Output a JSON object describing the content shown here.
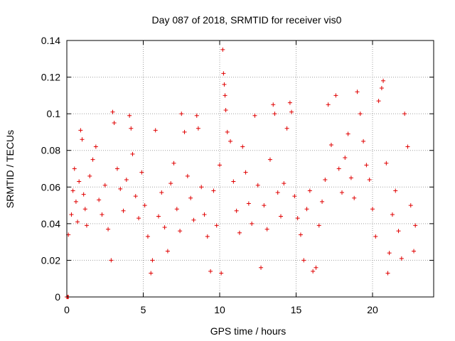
{
  "chart_data": {
    "type": "scatter",
    "title": "Day 087 of 2018, SRMTID for receiver vis0",
    "xlabel": "GPS time / hours",
    "ylabel": "SRMTID / TECUs",
    "xlim": [
      0,
      24
    ],
    "ylim": [
      0,
      0.14
    ],
    "xticks": [
      0,
      5,
      10,
      15,
      20
    ],
    "yticks": [
      0,
      0.02,
      0.04,
      0.06,
      0.08,
      0.1,
      0.12,
      0.14
    ],
    "xtick_labels": [
      "0",
      "5",
      "10",
      "15",
      "20"
    ],
    "ytick_labels": [
      "0",
      "0.02",
      "0.04",
      "0.06",
      "0.08",
      "0.1",
      "0.12",
      "0.14"
    ],
    "grid": true,
    "marker": "+",
    "series_color": "#e00000",
    "series": [
      {
        "name": "vis0",
        "note": "dense noisy cloud, approx 0.013-0.135 TECU over 0-22.8 h",
        "points": [
          [
            0.0,
            0.0
          ],
          [
            0.05,
            0.0
          ],
          [
            0.1,
            0.0
          ],
          [
            0.1,
            0.034
          ],
          [
            0.3,
            0.045
          ],
          [
            0.4,
            0.058
          ],
          [
            0.5,
            0.07
          ],
          [
            0.6,
            0.052
          ],
          [
            0.7,
            0.041
          ],
          [
            0.8,
            0.063
          ],
          [
            0.9,
            0.091
          ],
          [
            1.0,
            0.086
          ],
          [
            1.1,
            0.056
          ],
          [
            1.2,
            0.048
          ],
          [
            1.3,
            0.039
          ],
          [
            1.5,
            0.066
          ],
          [
            1.7,
            0.075
          ],
          [
            1.9,
            0.082
          ],
          [
            2.1,
            0.053
          ],
          [
            2.3,
            0.045
          ],
          [
            2.5,
            0.061
          ],
          [
            2.7,
            0.037
          ],
          [
            2.9,
            0.02
          ],
          [
            3.0,
            0.101
          ],
          [
            3.1,
            0.095
          ],
          [
            3.3,
            0.07
          ],
          [
            3.5,
            0.059
          ],
          [
            3.7,
            0.047
          ],
          [
            3.9,
            0.064
          ],
          [
            4.1,
            0.099
          ],
          [
            4.2,
            0.092
          ],
          [
            4.3,
            0.078
          ],
          [
            4.5,
            0.055
          ],
          [
            4.7,
            0.043
          ],
          [
            4.9,
            0.068
          ],
          [
            5.1,
            0.05
          ],
          [
            5.3,
            0.033
          ],
          [
            5.5,
            0.013
          ],
          [
            5.6,
            0.02
          ],
          [
            5.8,
            0.091
          ],
          [
            6.0,
            0.044
          ],
          [
            6.2,
            0.057
          ],
          [
            6.4,
            0.038
          ],
          [
            6.6,
            0.025
          ],
          [
            6.8,
            0.062
          ],
          [
            7.0,
            0.073
          ],
          [
            7.2,
            0.048
          ],
          [
            7.4,
            0.036
          ],
          [
            7.5,
            0.1
          ],
          [
            7.7,
            0.09
          ],
          [
            7.9,
            0.066
          ],
          [
            8.1,
            0.054
          ],
          [
            8.3,
            0.042
          ],
          [
            8.5,
            0.099
          ],
          [
            8.6,
            0.092
          ],
          [
            8.8,
            0.06
          ],
          [
            9.0,
            0.045
          ],
          [
            9.2,
            0.033
          ],
          [
            9.4,
            0.014
          ],
          [
            9.6,
            0.058
          ],
          [
            9.8,
            0.039
          ],
          [
            10.0,
            0.072
          ],
          [
            10.1,
            0.013
          ],
          [
            10.2,
            0.135
          ],
          [
            10.25,
            0.122
          ],
          [
            10.3,
            0.116
          ],
          [
            10.35,
            0.11
          ],
          [
            10.4,
            0.102
          ],
          [
            10.5,
            0.09
          ],
          [
            10.7,
            0.085
          ],
          [
            10.9,
            0.063
          ],
          [
            11.1,
            0.047
          ],
          [
            11.3,
            0.035
          ],
          [
            11.5,
            0.082
          ],
          [
            11.7,
            0.068
          ],
          [
            11.9,
            0.051
          ],
          [
            12.1,
            0.04
          ],
          [
            12.3,
            0.099
          ],
          [
            12.5,
            0.061
          ],
          [
            12.7,
            0.016
          ],
          [
            12.9,
            0.05
          ],
          [
            13.1,
            0.037
          ],
          [
            13.3,
            0.075
          ],
          [
            13.5,
            0.105
          ],
          [
            13.6,
            0.1
          ],
          [
            13.8,
            0.057
          ],
          [
            14.0,
            0.044
          ],
          [
            14.2,
            0.062
          ],
          [
            14.4,
            0.092
          ],
          [
            14.6,
            0.106
          ],
          [
            14.7,
            0.101
          ],
          [
            14.9,
            0.055
          ],
          [
            15.1,
            0.043
          ],
          [
            15.3,
            0.034
          ],
          [
            15.5,
            0.02
          ],
          [
            15.7,
            0.048
          ],
          [
            15.9,
            0.058
          ],
          [
            16.1,
            0.014
          ],
          [
            16.3,
            0.016
          ],
          [
            16.5,
            0.039
          ],
          [
            16.7,
            0.052
          ],
          [
            16.9,
            0.064
          ],
          [
            17.1,
            0.105
          ],
          [
            17.3,
            0.083
          ],
          [
            17.6,
            0.11
          ],
          [
            17.8,
            0.07
          ],
          [
            18.0,
            0.057
          ],
          [
            18.2,
            0.076
          ],
          [
            18.4,
            0.089
          ],
          [
            18.6,
            0.065
          ],
          [
            18.8,
            0.054
          ],
          [
            19.0,
            0.112
          ],
          [
            19.2,
            0.1
          ],
          [
            19.4,
            0.085
          ],
          [
            19.6,
            0.072
          ],
          [
            19.8,
            0.064
          ],
          [
            20.0,
            0.048
          ],
          [
            20.2,
            0.033
          ],
          [
            20.4,
            0.107
          ],
          [
            20.6,
            0.114
          ],
          [
            20.7,
            0.118
          ],
          [
            20.9,
            0.073
          ],
          [
            21.0,
            0.013
          ],
          [
            21.1,
            0.024
          ],
          [
            21.3,
            0.045
          ],
          [
            21.5,
            0.058
          ],
          [
            21.7,
            0.036
          ],
          [
            21.9,
            0.021
          ],
          [
            22.1,
            0.1
          ],
          [
            22.3,
            0.082
          ],
          [
            22.5,
            0.05
          ],
          [
            22.7,
            0.025
          ],
          [
            22.8,
            0.039
          ]
        ]
      }
    ]
  }
}
